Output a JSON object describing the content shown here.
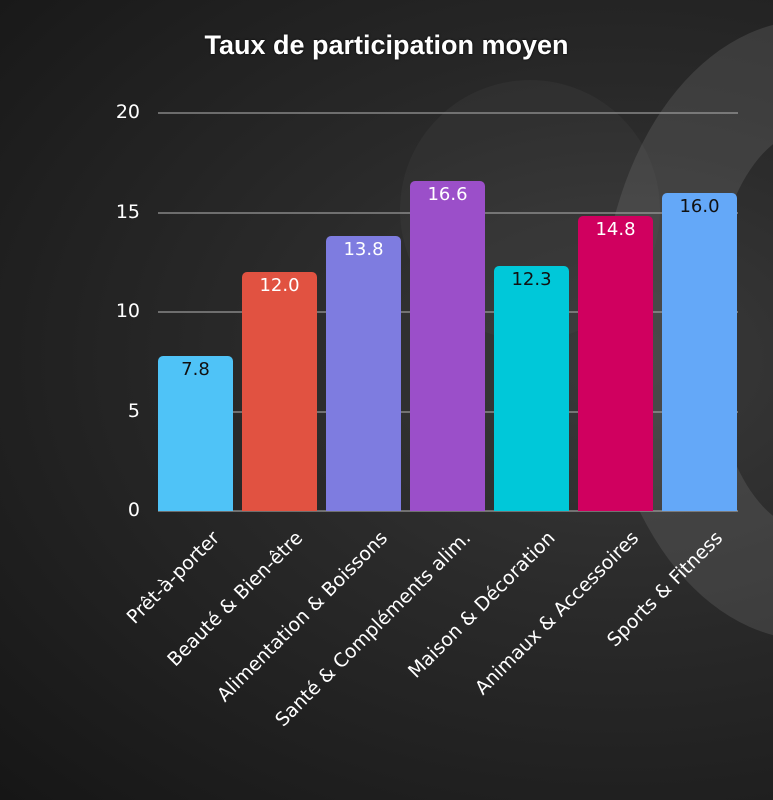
{
  "chart_data": {
    "type": "bar",
    "title": "Taux de participation moyen",
    "xlabel": "",
    "ylabel": "",
    "ylim": [
      0,
      20
    ],
    "yticks": [
      0,
      5,
      10,
      15,
      20
    ],
    "grid": true,
    "legend": null,
    "categories": [
      "Prêt-à-porter",
      "Beauté & Bien-être",
      "Alimentation & Boissons",
      "Santé & Compléments alim.",
      "Maison & Décoration",
      "Animaux & Accessoires",
      "Sports & Fitness"
    ],
    "values": [
      7.8,
      12.0,
      13.8,
      16.6,
      12.3,
      14.8,
      16.0
    ],
    "value_labels": [
      "7.8",
      "12.0",
      "13.8",
      "16.6",
      "12.3",
      "14.8",
      "16.0"
    ],
    "colors": [
      "#4FC3F7",
      "#E15241",
      "#7E7CE0",
      "#9B4FC9",
      "#00C8D9",
      "#D0005F",
      "#64A8F8"
    ],
    "label_colors": [
      "#111111",
      "#ffffff",
      "#ffffff",
      "#ffffff",
      "#111111",
      "#ffffff",
      "#111111"
    ]
  },
  "yaxis": {
    "ticks": [
      "0",
      "5",
      "10",
      "15",
      "20"
    ]
  }
}
